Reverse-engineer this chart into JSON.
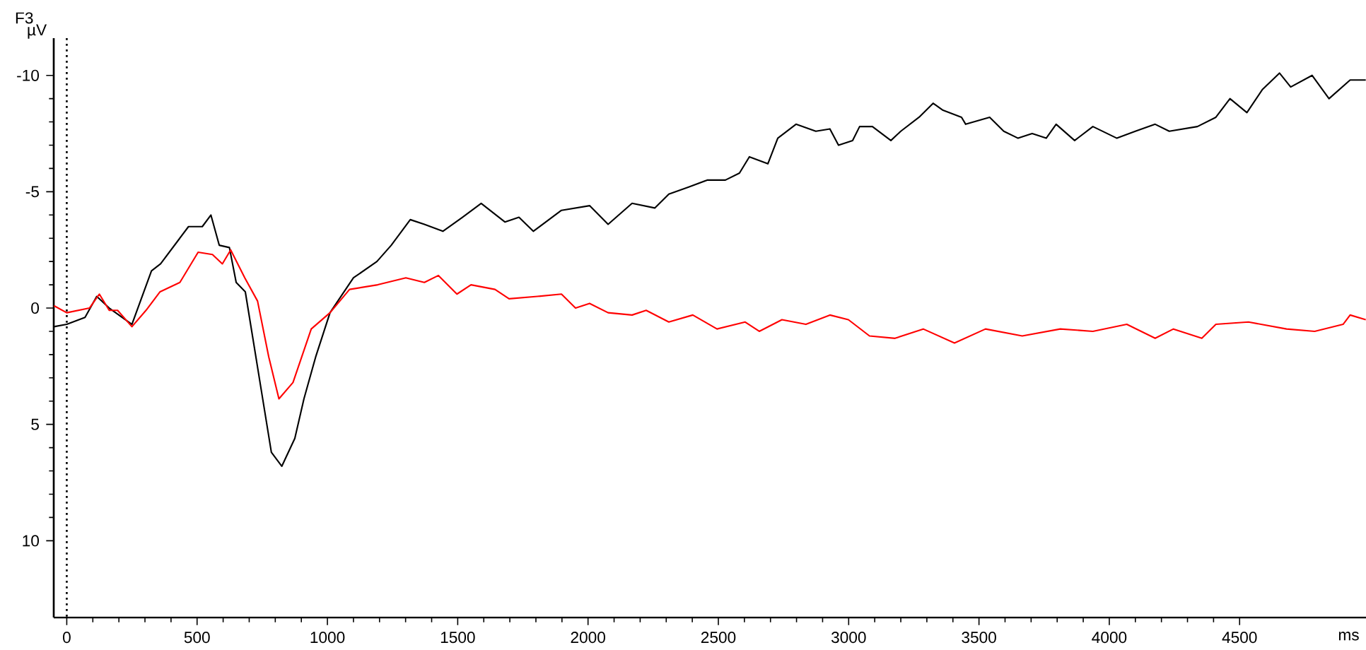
{
  "chart_data": {
    "type": "line",
    "title": "F3",
    "ylabel": "µV",
    "xlabel": "ms",
    "xlim": [
      -50,
      4985
    ],
    "ylim": [
      13.3,
      -11.6
    ],
    "xticks": [
      0,
      500,
      1000,
      1500,
      2000,
      2500,
      3000,
      3500,
      4000,
      4500
    ],
    "yticks": [
      -10,
      -5,
      0,
      5,
      10
    ],
    "line_style": "solid",
    "ref_lines": [
      {
        "axis": "x",
        "value": 0,
        "line_style": "dotted",
        "color": "#000000"
      }
    ],
    "series": [
      {
        "color": "#000000",
        "x": [
          -49,
          0,
          70,
          115,
          163,
          250,
          325,
          360,
          467,
          520,
          553,
          585,
          624,
          650,
          685,
          730,
          785,
          825,
          875,
          910,
          955,
          1010,
          1100,
          1190,
          1245,
          1318,
          1372,
          1443,
          1518,
          1590,
          1681,
          1735,
          1790,
          1898,
          2006,
          2077,
          2169,
          2256,
          2310,
          2386,
          2457,
          2527,
          2581,
          2619,
          2690,
          2728,
          2798,
          2874,
          2928,
          2961,
          3015,
          3042,
          3091,
          3162,
          3200,
          3270,
          3324,
          3362,
          3433,
          3449,
          3541,
          3595,
          3650,
          3704,
          3758,
          3796,
          3867,
          3937,
          4029,
          4100,
          4176,
          4230,
          4338,
          4409,
          4463,
          4528,
          4588,
          4653,
          4696,
          4778,
          4843,
          4924,
          4984
        ],
        "values": [
          0.8,
          0.7,
          0.4,
          -0.5,
          0,
          0.7,
          -1.6,
          -1.9,
          -3.5,
          -3.5,
          -4.0,
          -2.7,
          -2.6,
          -1.1,
          -0.7,
          2.4,
          6.2,
          6.8,
          5.6,
          3.9,
          2.1,
          0.2,
          -1.3,
          -2.0,
          -2.7,
          -3.8,
          -3.6,
          -3.3,
          -3.9,
          -4.5,
          -3.7,
          -3.9,
          -3.3,
          -4.2,
          -4.4,
          -3.6,
          -4.5,
          -4.3,
          -4.9,
          -5.2,
          -5.5,
          -5.5,
          -5.8,
          -6.5,
          -6.2,
          -7.3,
          -7.9,
          -7.6,
          -7.7,
          -7.0,
          -7.2,
          -7.8,
          -7.8,
          -7.2,
          -7.6,
          -8.2,
          -8.8,
          -8.5,
          -8.2,
          -7.9,
          -8.2,
          -7.6,
          -7.3,
          -7.5,
          -7.3,
          -7.9,
          -7.2,
          -7.8,
          -7.3,
          -7.6,
          -7.9,
          -7.6,
          -7.8,
          -8.2,
          -9.0,
          -8.4,
          -9.4,
          -10.1,
          -9.5,
          -10.0,
          -9.0,
          -9.8,
          -9.8
        ]
      },
      {
        "color": "#ff0000",
        "x": [
          -49,
          0,
          87,
          125,
          163,
          195,
          250,
          304,
          358,
          434,
          504,
          559,
          597,
          629,
          683,
          732,
          775,
          814,
          868,
          938,
          1010,
          1085,
          1193,
          1301,
          1372,
          1426,
          1497,
          1551,
          1643,
          1697,
          1806,
          1898,
          1952,
          2006,
          2077,
          2169,
          2223,
          2310,
          2402,
          2495,
          2603,
          2657,
          2744,
          2836,
          2928,
          2999,
          3080,
          3178,
          3286,
          3406,
          3525,
          3666,
          3812,
          3937,
          4067,
          4176,
          4246,
          4355,
          4409,
          4534,
          4680,
          4788,
          4897,
          4924,
          4984
        ],
        "values": [
          -0.1,
          0.2,
          0,
          -0.6,
          0.1,
          0.1,
          0.8,
          0.1,
          -0.7,
          -1.1,
          -2.4,
          -2.3,
          -1.9,
          -2.5,
          -1.3,
          -0.3,
          2.1,
          3.9,
          3.2,
          0.9,
          0.2,
          -0.8,
          -1.0,
          -1.3,
          -1.1,
          -1.4,
          -0.6,
          -1.0,
          -0.8,
          -0.4,
          -0.5,
          -0.6,
          0,
          -0.2,
          0.2,
          0.3,
          0.1,
          0.6,
          0.3,
          0.9,
          0.6,
          1.0,
          0.5,
          0.7,
          0.3,
          0.5,
          1.2,
          1.3,
          0.9,
          1.5,
          0.9,
          1.2,
          0.9,
          1.0,
          0.7,
          1.3,
          0.9,
          1.3,
          0.7,
          0.6,
          0.9,
          1.0,
          0.7,
          0.3,
          0.5
        ]
      }
    ]
  }
}
